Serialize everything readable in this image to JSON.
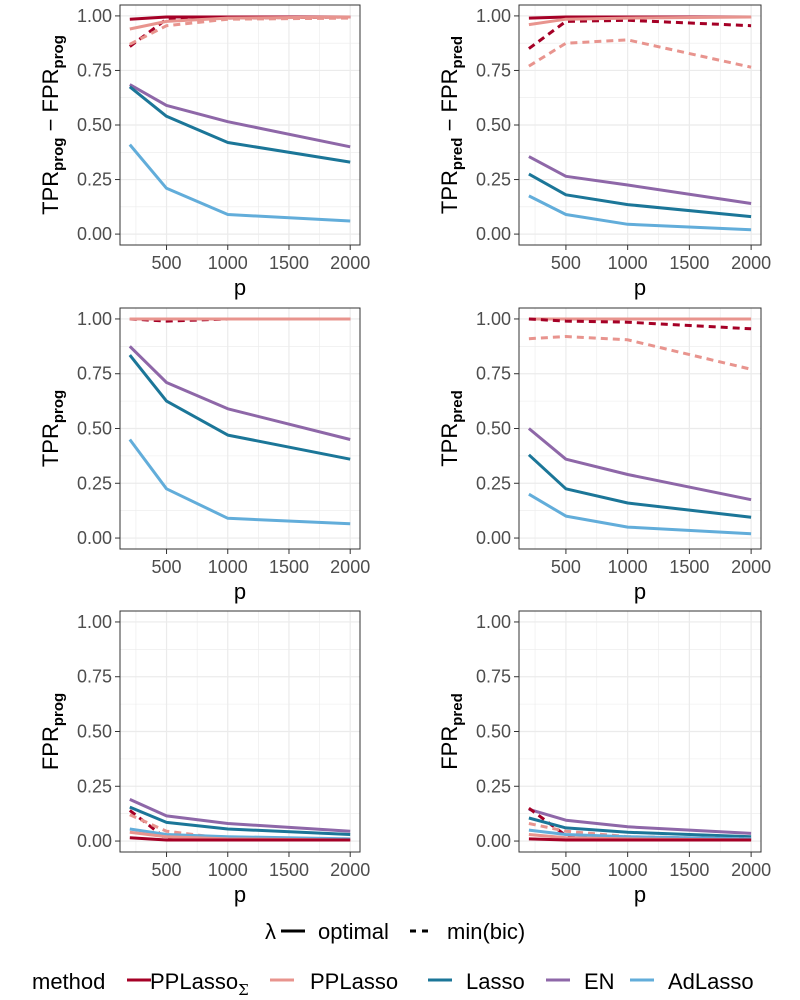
{
  "colors": {
    "PPLasso_Sigma": "#A50026",
    "PPLasso": "#E8948E",
    "Lasso": "#1B7698",
    "EN": "#8E67A8",
    "AdLasso": "#62ADDA",
    "grid": "#EBEBEB",
    "panel_border": "#333333"
  },
  "legend": {
    "lambda_title": "λ",
    "lambda_entries": [
      "optimal",
      "min(bic)"
    ],
    "method_title": "method",
    "methods": [
      {
        "key": "PPLasso_Sigma",
        "label": "PPLasso",
        "subscript": "Σ"
      },
      {
        "key": "PPLasso",
        "label": "PPLasso",
        "subscript": ""
      },
      {
        "key": "Lasso",
        "label": "Lasso",
        "subscript": ""
      },
      {
        "key": "EN",
        "label": "EN",
        "subscript": ""
      },
      {
        "key": "AdLasso",
        "label": "AdLasso",
        "subscript": ""
      }
    ]
  },
  "chart_data": [
    {
      "type": "line",
      "id": "tpr-fpr-prog",
      "ylabel_parts": [
        "TPR",
        "prog",
        " − FPR",
        "prog"
      ],
      "xlabel": "p",
      "x": [
        200,
        500,
        1000,
        2000
      ],
      "xticks": [
        500,
        1000,
        1500,
        2000
      ],
      "xlim": [
        120,
        2080
      ],
      "yticks": [
        0.0,
        0.25,
        0.5,
        0.75,
        1.0
      ],
      "ylim": [
        -0.05,
        1.05
      ],
      "series": [
        {
          "method": "PPLasso_Sigma",
          "lambda": "optimal",
          "values": [
            0.985,
            0.995,
            0.995,
            0.995
          ]
        },
        {
          "method": "PPLasso_Sigma",
          "lambda": "min(bic)",
          "values": [
            0.86,
            0.985,
            0.99,
            0.995
          ]
        },
        {
          "method": "PPLasso",
          "lambda": "optimal",
          "values": [
            0.94,
            0.975,
            0.99,
            0.995
          ]
        },
        {
          "method": "PPLasso",
          "lambda": "min(bic)",
          "values": [
            0.87,
            0.955,
            0.985,
            0.99
          ]
        },
        {
          "method": "EN",
          "lambda": "optimal",
          "values": [
            0.685,
            0.59,
            0.515,
            0.4
          ]
        },
        {
          "method": "Lasso",
          "lambda": "optimal",
          "values": [
            0.675,
            0.54,
            0.42,
            0.33
          ]
        },
        {
          "method": "AdLasso",
          "lambda": "optimal",
          "values": [
            0.41,
            0.21,
            0.09,
            0.06
          ]
        }
      ]
    },
    {
      "type": "line",
      "id": "tpr-fpr-pred",
      "ylabel_parts": [
        "TPR",
        "pred",
        " − FPR",
        "pred"
      ],
      "xlabel": "p",
      "x": [
        200,
        500,
        1000,
        2000
      ],
      "xticks": [
        500,
        1000,
        1500,
        2000
      ],
      "xlim": [
        120,
        2080
      ],
      "yticks": [
        0.0,
        0.25,
        0.5,
        0.75,
        1.0
      ],
      "ylim": [
        -0.05,
        1.05
      ],
      "series": [
        {
          "method": "PPLasso_Sigma",
          "lambda": "optimal",
          "values": [
            0.99,
            0.995,
            0.995,
            0.995
          ]
        },
        {
          "method": "PPLasso_Sigma",
          "lambda": "min(bic)",
          "values": [
            0.85,
            0.975,
            0.98,
            0.955
          ]
        },
        {
          "method": "PPLasso",
          "lambda": "optimal",
          "values": [
            0.96,
            0.985,
            0.99,
            0.995
          ]
        },
        {
          "method": "PPLasso",
          "lambda": "min(bic)",
          "values": [
            0.77,
            0.875,
            0.89,
            0.765
          ]
        },
        {
          "method": "EN",
          "lambda": "optimal",
          "values": [
            0.355,
            0.265,
            0.225,
            0.14
          ]
        },
        {
          "method": "Lasso",
          "lambda": "optimal",
          "values": [
            0.275,
            0.18,
            0.135,
            0.08
          ]
        },
        {
          "method": "AdLasso",
          "lambda": "optimal",
          "values": [
            0.175,
            0.09,
            0.045,
            0.02
          ]
        }
      ]
    },
    {
      "type": "line",
      "id": "tpr-prog",
      "ylabel_parts": [
        "TPR",
        "prog"
      ],
      "xlabel": "p",
      "x": [
        200,
        500,
        1000,
        2000
      ],
      "xticks": [
        500,
        1000,
        1500,
        2000
      ],
      "xlim": [
        120,
        2080
      ],
      "yticks": [
        0.0,
        0.25,
        0.5,
        0.75,
        1.0
      ],
      "ylim": [
        -0.05,
        1.05
      ],
      "series": [
        {
          "method": "PPLasso_Sigma",
          "lambda": "min(bic)",
          "values": [
            1.0,
            0.99,
            1.0,
            1.0
          ]
        },
        {
          "method": "PPLasso",
          "lambda": "min(bic)",
          "values": [
            1.0,
            1.0,
            1.0,
            1.0
          ]
        },
        {
          "method": "PPLasso",
          "lambda": "optimal",
          "values": [
            1.0,
            1.0,
            1.0,
            1.0
          ]
        },
        {
          "method": "EN",
          "lambda": "optimal",
          "values": [
            0.875,
            0.71,
            0.59,
            0.45
          ]
        },
        {
          "method": "Lasso",
          "lambda": "optimal",
          "values": [
            0.835,
            0.625,
            0.47,
            0.36
          ]
        },
        {
          "method": "AdLasso",
          "lambda": "optimal",
          "values": [
            0.45,
            0.225,
            0.09,
            0.065
          ]
        }
      ]
    },
    {
      "type": "line",
      "id": "tpr-pred",
      "ylabel_parts": [
        "TPR",
        "pred"
      ],
      "xlabel": "p",
      "x": [
        200,
        500,
        1000,
        2000
      ],
      "xticks": [
        500,
        1000,
        1500,
        2000
      ],
      "xlim": [
        120,
        2080
      ],
      "yticks": [
        0.0,
        0.25,
        0.5,
        0.75,
        1.0
      ],
      "ylim": [
        -0.05,
        1.05
      ],
      "series": [
        {
          "method": "PPLasso",
          "lambda": "optimal",
          "values": [
            1.0,
            1.0,
            1.0,
            1.0
          ]
        },
        {
          "method": "PPLasso_Sigma",
          "lambda": "min(bic)",
          "values": [
            1.0,
            0.99,
            0.985,
            0.955
          ]
        },
        {
          "method": "PPLasso",
          "lambda": "min(bic)",
          "values": [
            0.91,
            0.92,
            0.905,
            0.77
          ]
        },
        {
          "method": "EN",
          "lambda": "optimal",
          "values": [
            0.5,
            0.36,
            0.29,
            0.175
          ]
        },
        {
          "method": "Lasso",
          "lambda": "optimal",
          "values": [
            0.38,
            0.225,
            0.16,
            0.095
          ]
        },
        {
          "method": "AdLasso",
          "lambda": "optimal",
          "values": [
            0.2,
            0.1,
            0.05,
            0.02
          ]
        }
      ]
    },
    {
      "type": "line",
      "id": "fpr-prog",
      "ylabel_parts": [
        "FPR",
        "prog"
      ],
      "xlabel": "p",
      "x": [
        200,
        500,
        1000,
        2000
      ],
      "xticks": [
        500,
        1000,
        1500,
        2000
      ],
      "xlim": [
        120,
        2080
      ],
      "yticks": [
        0.0,
        0.25,
        0.5,
        0.75,
        1.0
      ],
      "ylim": [
        -0.05,
        1.05
      ],
      "series": [
        {
          "method": "EN",
          "lambda": "optimal",
          "values": [
            0.19,
            0.115,
            0.08,
            0.045
          ]
        },
        {
          "method": "Lasso",
          "lambda": "optimal",
          "values": [
            0.155,
            0.085,
            0.055,
            0.03
          ]
        },
        {
          "method": "PPLasso_Sigma",
          "lambda": "min(bic)",
          "values": [
            0.14,
            0.01,
            0.005,
            0.005
          ]
        },
        {
          "method": "PPLasso",
          "lambda": "min(bic)",
          "values": [
            0.12,
            0.045,
            0.01,
            0.01
          ]
        },
        {
          "method": "AdLasso",
          "lambda": "optimal",
          "values": [
            0.055,
            0.03,
            0.02,
            0.01
          ]
        },
        {
          "method": "PPLasso",
          "lambda": "optimal",
          "values": [
            0.04,
            0.02,
            0.01,
            0.005
          ]
        },
        {
          "method": "PPLasso_Sigma",
          "lambda": "optimal",
          "values": [
            0.015,
            0.005,
            0.005,
            0.005
          ]
        }
      ]
    },
    {
      "type": "line",
      "id": "fpr-pred",
      "ylabel_parts": [
        "FPR",
        "pred"
      ],
      "xlabel": "p",
      "x": [
        200,
        500,
        1000,
        2000
      ],
      "xticks": [
        500,
        1000,
        1500,
        2000
      ],
      "xlim": [
        120,
        2080
      ],
      "yticks": [
        0.0,
        0.25,
        0.5,
        0.75,
        1.0
      ],
      "ylim": [
        -0.05,
        1.05
      ],
      "series": [
        {
          "method": "EN",
          "lambda": "optimal",
          "values": [
            0.145,
            0.095,
            0.065,
            0.035
          ]
        },
        {
          "method": "PPLasso_Sigma",
          "lambda": "min(bic)",
          "values": [
            0.15,
            0.025,
            0.01,
            0.005
          ]
        },
        {
          "method": "Lasso",
          "lambda": "optimal",
          "values": [
            0.105,
            0.06,
            0.04,
            0.02
          ]
        },
        {
          "method": "PPLasso",
          "lambda": "min(bic)",
          "values": [
            0.08,
            0.045,
            0.02,
            0.01
          ]
        },
        {
          "method": "AdLasso",
          "lambda": "optimal",
          "values": [
            0.05,
            0.03,
            0.02,
            0.01
          ]
        },
        {
          "method": "PPLasso",
          "lambda": "optimal",
          "values": [
            0.03,
            0.015,
            0.01,
            0.005
          ]
        },
        {
          "method": "PPLasso_Sigma",
          "lambda": "optimal",
          "values": [
            0.01,
            0.005,
            0.005,
            0.005
          ]
        }
      ]
    }
  ]
}
